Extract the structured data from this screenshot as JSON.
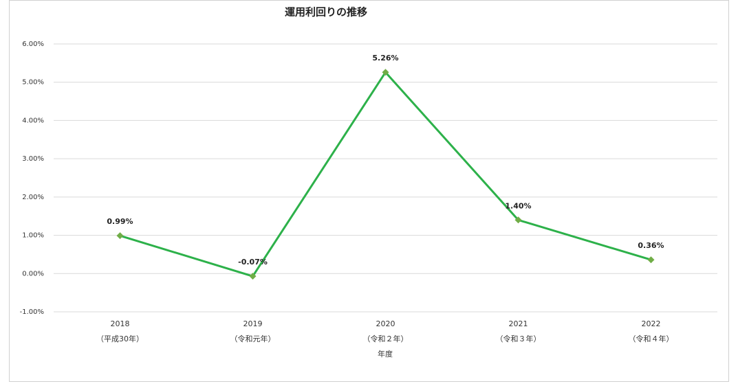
{
  "chart_data": {
    "type": "line",
    "title": "運用利回りの推移",
    "categories": [
      "2018",
      "2019",
      "2020",
      "2021",
      "2022"
    ],
    "category_sublabels": [
      "（平成30年）",
      "（令和元年）",
      "（令和２年）",
      "（令和３年）",
      "（令和４年）"
    ],
    "x_label": "年度",
    "series": [
      {
        "color": "#2db14a",
        "marker_color": "#70ad47",
        "values": [
          0.99,
          -0.07,
          5.26,
          1.4,
          0.36
        ],
        "value_labels": [
          "0.99%",
          "-0.07%",
          "5.26%",
          "1.40%",
          "0.36%"
        ]
      }
    ],
    "ylim": [
      -1,
      6
    ],
    "yticks": [
      {
        "value": -1,
        "label": "-1.00%"
      },
      {
        "value": 0,
        "label": "0.00%"
      },
      {
        "value": 1,
        "label": "1.00%"
      },
      {
        "value": 2,
        "label": "2.00%"
      },
      {
        "value": 3,
        "label": "3.00%"
      },
      {
        "value": 4,
        "label": "4.00%"
      },
      {
        "value": 5,
        "label": "5.00%"
      },
      {
        "value": 6,
        "label": "6.00%"
      }
    ],
    "grid": true
  }
}
